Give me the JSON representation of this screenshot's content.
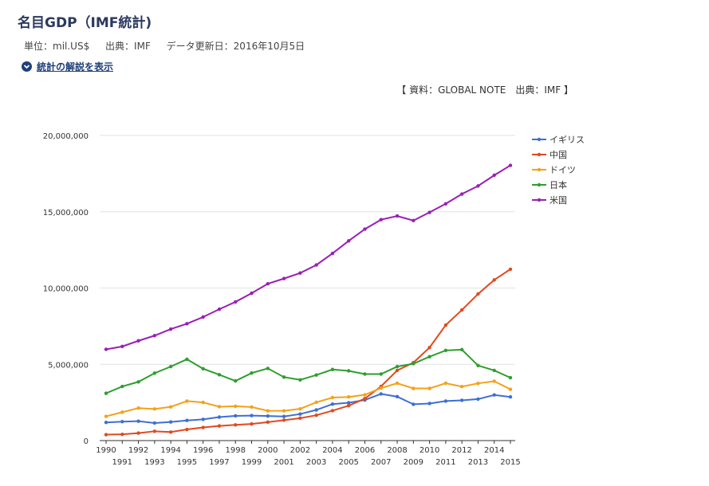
{
  "page": {
    "title": "名目GDP（IMF統計)",
    "unit": "単位：mil.US$",
    "source_org": "出典：IMF",
    "updated": "データ更新日：2016年10月5日",
    "expand_link": "統計の解説を表示",
    "attribution": "【 資料：GLOBAL NOTE　出典：IMF 】"
  },
  "colors": {
    "title": "#2b3a5e",
    "link": "#1f3f7a"
  },
  "chart_data": {
    "type": "line",
    "x": [
      1990,
      1991,
      1992,
      1993,
      1994,
      1995,
      1996,
      1997,
      1998,
      1999,
      2000,
      2001,
      2002,
      2003,
      2004,
      2005,
      2006,
      2007,
      2008,
      2009,
      2010,
      2011,
      2012,
      2013,
      2014,
      2015
    ],
    "ylim": [
      0,
      20000000
    ],
    "yticks": [
      0,
      5000000,
      10000000,
      15000000,
      20000000
    ],
    "ytick_labels": [
      "0",
      "5,000,000",
      "10,000,000",
      "15,000,000",
      "20,000,000"
    ],
    "xtick_labels": [
      "1990",
      "1991",
      "1992",
      "1993",
      "1994",
      "1995",
      "1996",
      "1997",
      "1998",
      "1999",
      "2000",
      "2001",
      "2002",
      "2003",
      "2004",
      "2005",
      "2006",
      "2007",
      "2008",
      "2009",
      "2010",
      "2011",
      "2012",
      "2013",
      "2014",
      "2015"
    ],
    "legend_position": "right",
    "grid": "horizontal",
    "series": [
      {
        "name": "イギリス",
        "color": "#3e6fd4",
        "values": [
          1190000,
          1240000,
          1270000,
          1150000,
          1220000,
          1320000,
          1390000,
          1540000,
          1620000,
          1640000,
          1610000,
          1580000,
          1740000,
          2010000,
          2390000,
          2480000,
          2660000,
          3060000,
          2880000,
          2380000,
          2430000,
          2590000,
          2640000,
          2720000,
          2990000,
          2860000
        ]
      },
      {
        "name": "中国",
        "color": "#e04a1f",
        "values": [
          390000,
          410000,
          490000,
          610000,
          560000,
          730000,
          860000,
          960000,
          1030000,
          1090000,
          1210000,
          1340000,
          1470000,
          1660000,
          1960000,
          2290000,
          2750000,
          3550000,
          4600000,
          5110000,
          6100000,
          7570000,
          8560000,
          9610000,
          10530000,
          11230000
        ]
      },
      {
        "name": "ドイツ",
        "color": "#f5a117",
        "values": [
          1590000,
          1860000,
          2130000,
          2070000,
          2210000,
          2590000,
          2500000,
          2220000,
          2250000,
          2200000,
          1950000,
          1950000,
          2080000,
          2510000,
          2820000,
          2860000,
          3000000,
          3440000,
          3760000,
          3420000,
          3420000,
          3760000,
          3540000,
          3750000,
          3890000,
          3360000
        ]
      },
      {
        "name": "日本",
        "color": "#2e9e2e",
        "values": [
          3100000,
          3550000,
          3850000,
          4420000,
          4850000,
          5330000,
          4710000,
          4320000,
          3910000,
          4430000,
          4730000,
          4160000,
          3980000,
          4300000,
          4660000,
          4570000,
          4360000,
          4360000,
          4850000,
          5040000,
          5500000,
          5910000,
          5960000,
          4920000,
          4600000,
          4120000
        ]
      },
      {
        "name": "米国",
        "color": "#9a1fb8",
        "values": [
          5980000,
          6170000,
          6540000,
          6880000,
          7310000,
          7660000,
          8100000,
          8610000,
          9090000,
          9660000,
          10280000,
          10620000,
          10980000,
          11510000,
          12270000,
          13090000,
          13860000,
          14480000,
          14720000,
          14420000,
          14960000,
          15520000,
          16160000,
          16690000,
          17390000,
          18040000
        ]
      }
    ]
  }
}
